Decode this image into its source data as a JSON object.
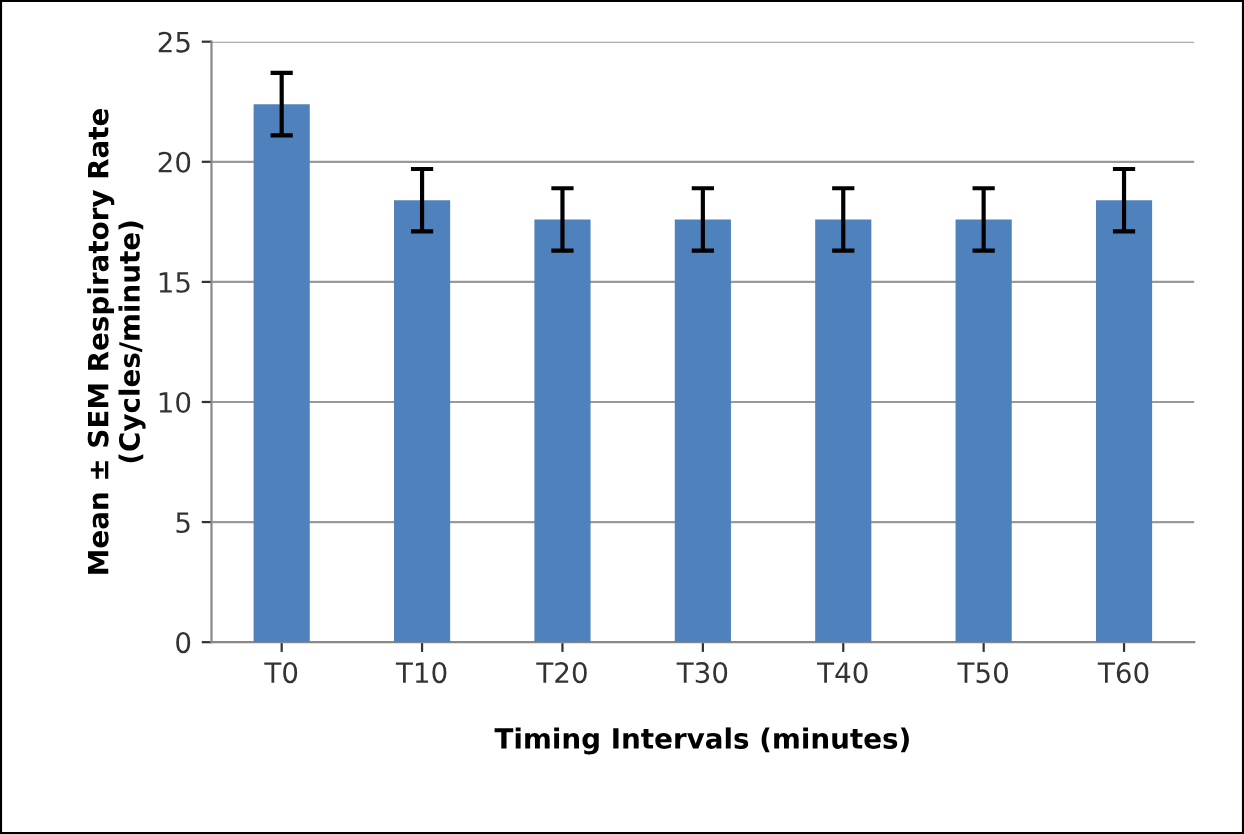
{
  "chart_data": {
    "type": "bar",
    "xlabel": "Timing Intervals (minutes)",
    "ylabel": "Mean ± SEM Respiratory Rate\n(Cycles/minute)",
    "categories": [
      "T0",
      "T10",
      "T20",
      "T30",
      "T40",
      "T50",
      "T60"
    ],
    "values": [
      22.4,
      18.4,
      17.6,
      17.6,
      17.6,
      17.6,
      18.4
    ],
    "errors": [
      1.3,
      1.3,
      1.3,
      1.3,
      1.3,
      1.3,
      1.3
    ],
    "color": "#4f81bd",
    "ylim": [
      0,
      25
    ],
    "yticks": [
      0,
      5,
      10,
      15,
      20,
      25
    ],
    "grid": "y",
    "legend": false
  }
}
